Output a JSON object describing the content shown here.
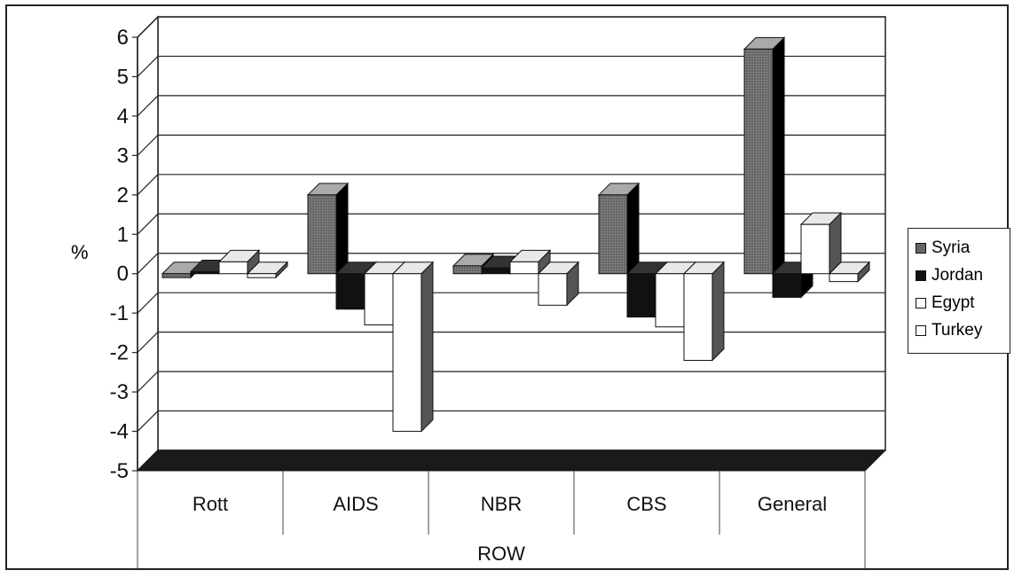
{
  "chart_data": {
    "type": "bar",
    "style": "3d-clustered-column",
    "title": "",
    "ylabel": "%",
    "xlabel": "ROW",
    "ylim": [
      -5,
      6
    ],
    "yticks": [
      "-5",
      "-4",
      "-3",
      "-2",
      "-1",
      "0",
      "1",
      "2",
      "3",
      "4",
      "5",
      "6"
    ],
    "grid": true,
    "legend_position": "right",
    "categories": [
      "Rott",
      "AIDS",
      "NBR",
      "CBS",
      "General"
    ],
    "series": [
      {
        "name": "Syria",
        "color": "#555555",
        "values": [
          -0.1,
          2.0,
          0.2,
          2.0,
          5.7
        ]
      },
      {
        "name": "Jordan",
        "color": "#111111",
        "values": [
          0.05,
          -0.9,
          0.15,
          -1.1,
          -0.6
        ]
      },
      {
        "name": "Egypt",
        "color": "#ffffff",
        "values": [
          0.3,
          -1.3,
          0.3,
          -1.35,
          1.25
        ]
      },
      {
        "name": "Turkey",
        "color": "#ffffff",
        "values": [
          -0.1,
          -4.0,
          -0.8,
          -2.2,
          -0.2
        ]
      }
    ]
  }
}
